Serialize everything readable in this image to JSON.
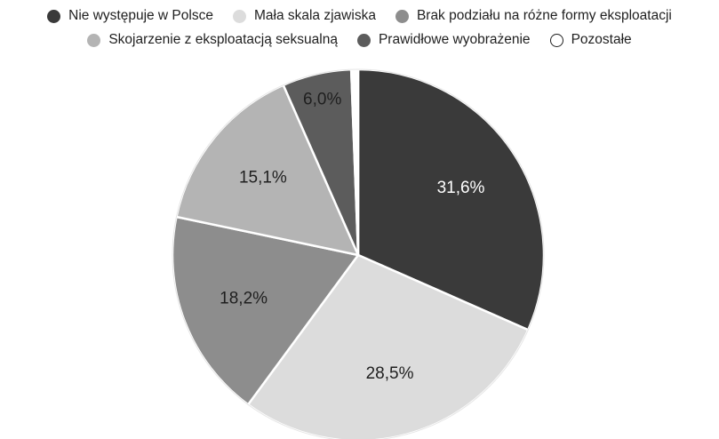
{
  "chart_data": {
    "type": "pie",
    "categories": [
      "Nie występuje w Polsce",
      "Mała skala zjawiska",
      "Brak podziału na różne formy eksploatacji",
      "Skojarzenie z eksploatacją seksualną",
      "Prawidłowe wyobrażenie",
      "Pozostałe"
    ],
    "values": [
      31.6,
      28.5,
      18.2,
      15.1,
      6.0,
      0.6
    ],
    "data_labels": [
      "31,6%",
      "28,5%",
      "18,2%",
      "15,1%",
      "6,0%",
      ""
    ],
    "colors": [
      "#3a3a3a",
      "#dcdcdc",
      "#8d8d8d",
      "#b4b4b4",
      "#5c5c5c",
      "#ffffff"
    ],
    "label_colors": [
      "#ffffff",
      "#1f1f1f",
      "#1f1f1f",
      "#1f1f1f",
      "#1f1f1f",
      "#1f1f1f"
    ],
    "legend_placement": "top",
    "start_angle": "12 o'clock",
    "direction": "clockwise"
  }
}
